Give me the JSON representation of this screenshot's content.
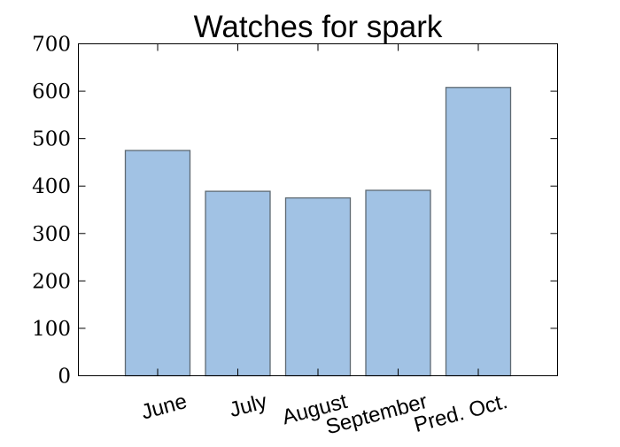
{
  "chart_data": {
    "type": "bar",
    "title": "Watches for spark",
    "xlabel": "",
    "ylabel": "",
    "categories": [
      "June",
      "July",
      "August",
      "September",
      "Pred. Oct."
    ],
    "values": [
      475,
      389,
      375,
      391,
      608
    ],
    "ylim": [
      0,
      700
    ],
    "yticks": [
      0,
      100,
      200,
      300,
      400,
      500,
      600,
      700
    ],
    "ytick_labels": [
      "0",
      "100",
      "200",
      "300",
      "400",
      "500",
      "600",
      "700"
    ],
    "grid": false,
    "legend": null,
    "bar_color": "#a1c2e4",
    "bar_edge_color": "#5f6a72"
  }
}
